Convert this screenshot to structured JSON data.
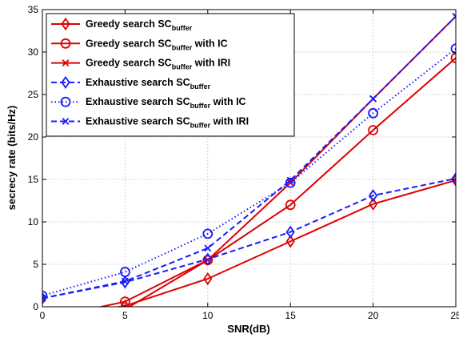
{
  "chart_data": {
    "type": "line",
    "title": "",
    "xlabel": "SNR(dB)",
    "ylabel": "secrecy rate (bits/Hz)",
    "xlim": [
      0,
      25
    ],
    "ylim": [
      0,
      35
    ],
    "xticks": [
      0,
      5,
      10,
      15,
      20,
      25
    ],
    "yticks": [
      0,
      5,
      10,
      15,
      20,
      25,
      30,
      35
    ],
    "grid": true,
    "legend_position": "top-left",
    "series": [
      {
        "name": "Greedy search SC_buffer",
        "name_main": "Greedy search SC",
        "name_sub": "buffer",
        "name_suffix": "",
        "color": "#e00000",
        "dash": "solid",
        "marker": "diamond",
        "x": [
          0,
          5,
          10,
          15,
          20,
          25
        ],
        "values": [
          -1.5,
          0.1,
          3.3,
          7.7,
          12.1,
          14.9
        ]
      },
      {
        "name": "Greedy search SC_buffer with IC",
        "name_main": "Greedy search SC",
        "name_sub": "buffer",
        "name_suffix": " with IC",
        "color": "#e00000",
        "dash": "solid",
        "marker": "circle",
        "x": [
          0,
          5,
          10,
          15,
          20,
          25
        ],
        "values": [
          -1.5,
          0.6,
          5.5,
          12.0,
          20.8,
          29.3
        ]
      },
      {
        "name": "Greedy search SC_buffer with IRI",
        "name_main": "Greedy search SC",
        "name_sub": "buffer",
        "name_suffix": " with IRI",
        "color": "#e00000",
        "dash": "solid",
        "marker": "x",
        "x": [
          0,
          5,
          10,
          15,
          20,
          25
        ],
        "values": [
          -1.5,
          -0.3,
          5.5,
          14.6,
          24.5,
          34.2
        ]
      },
      {
        "name": "Exhaustive search SC_buffer",
        "name_main": "Exhaustive search SC",
        "name_sub": "buffer",
        "name_suffix": "",
        "color": "#1a1aff",
        "dash": "dashed",
        "marker": "diamond",
        "x": [
          0,
          5,
          10,
          15,
          20,
          25
        ],
        "values": [
          1.0,
          2.9,
          5.6,
          8.8,
          13.1,
          15.1
        ]
      },
      {
        "name": "Exhaustive search SC_buffer with IC",
        "name_main": "Exhaustive search SC",
        "name_sub": "buffer",
        "name_suffix": " with IC",
        "color": "#1a1aff",
        "dash": "dotted",
        "marker": "circle",
        "x": [
          0,
          5,
          10,
          15,
          20,
          25
        ],
        "values": [
          1.3,
          4.1,
          8.6,
          14.6,
          22.8,
          30.4
        ]
      },
      {
        "name": "Exhaustive search SC_buffer with IRI",
        "name_main": "Exhaustive search SC",
        "name_sub": "buffer",
        "name_suffix": " with IRI",
        "color": "#1a1aff",
        "dash": "dashed",
        "marker": "x",
        "x": [
          0,
          5,
          10,
          15,
          20,
          25
        ],
        "values": [
          1.0,
          3.0,
          6.9,
          14.9,
          24.5,
          34.2
        ]
      }
    ]
  }
}
